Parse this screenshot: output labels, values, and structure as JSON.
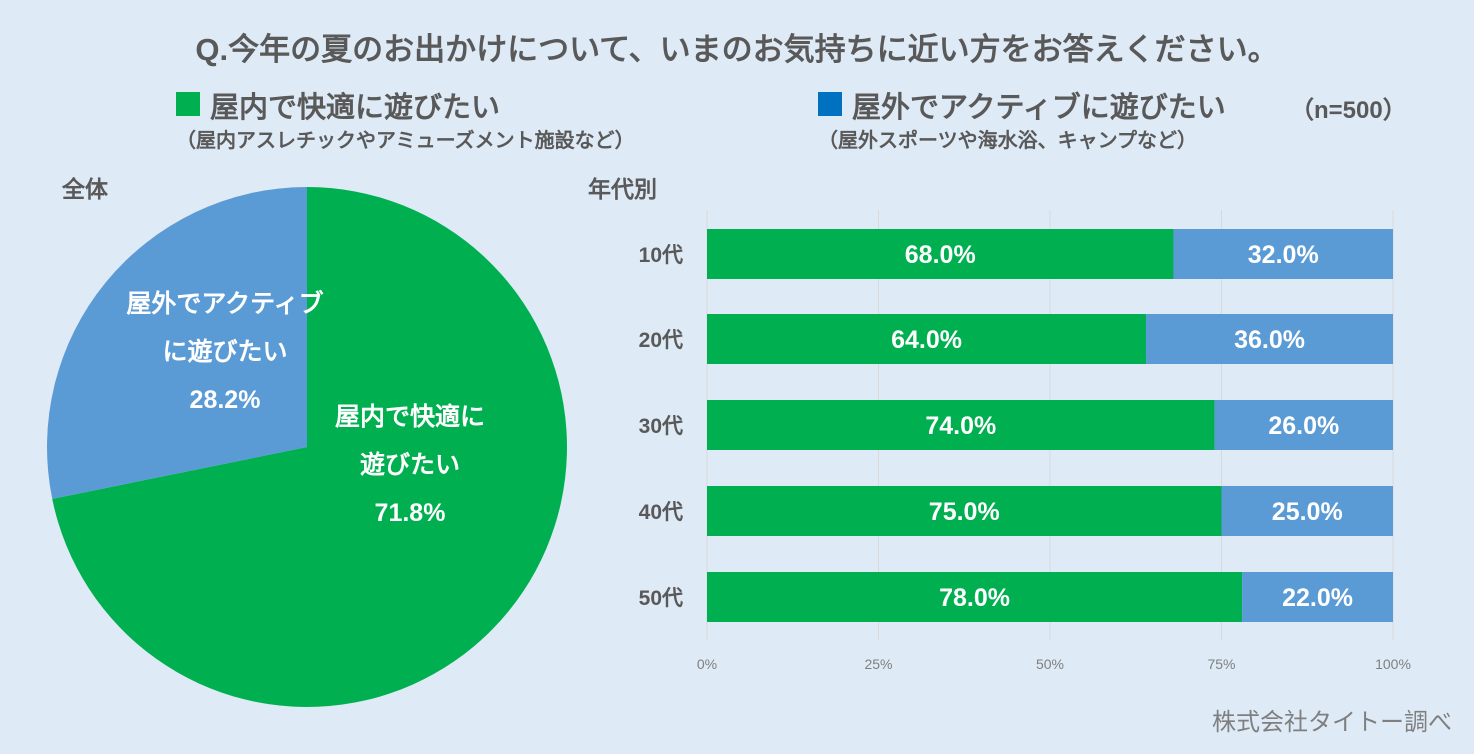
{
  "title": "Q.今年の夏のお出かけについて、いまのお気持ちに近い方をお答えください。",
  "legend": [
    {
      "label": "屋内で快適に遊びたい",
      "sub": "（屋内アスレチックやアミューズメント施設など）",
      "color": "#00b050"
    },
    {
      "label": "屋外でアクティブに遊びたい",
      "sub": "（屋外スポーツや海水浴、キャンプなど）",
      "color": "#0070c0"
    }
  ],
  "sample": "（n=500）",
  "source": "株式会社タイトー調べ",
  "colors": {
    "indoor": "#00b050",
    "outdoor": "#5b9bd5",
    "grid": "#d9d9d9"
  },
  "chart_data": [
    {
      "type": "pie",
      "title": "全体",
      "slices": [
        {
          "label_lines": [
            "屋内で快適に",
            "遊びたい"
          ],
          "value": 71.8,
          "value_label": "71.8%"
        },
        {
          "label_lines": [
            "屋外でアクティブ",
            "に遊びたい"
          ],
          "value": 28.2,
          "value_label": "28.2%"
        }
      ]
    },
    {
      "type": "bar",
      "orientation": "horizontal",
      "stacked": true,
      "title": "年代別",
      "categories": [
        "10代",
        "20代",
        "30代",
        "40代",
        "50代"
      ],
      "series": [
        {
          "name": "屋内で快適に遊びたい",
          "values": [
            68.0,
            64.0,
            74.0,
            75.0,
            78.0
          ]
        },
        {
          "name": "屋外でアクティブに遊びたい",
          "values": [
            32.0,
            36.0,
            26.0,
            25.0,
            22.0
          ]
        }
      ],
      "xlim": [
        0,
        100
      ],
      "xticks": [
        "0%",
        "25%",
        "50%",
        "75%",
        "100%"
      ],
      "grid": true
    }
  ]
}
